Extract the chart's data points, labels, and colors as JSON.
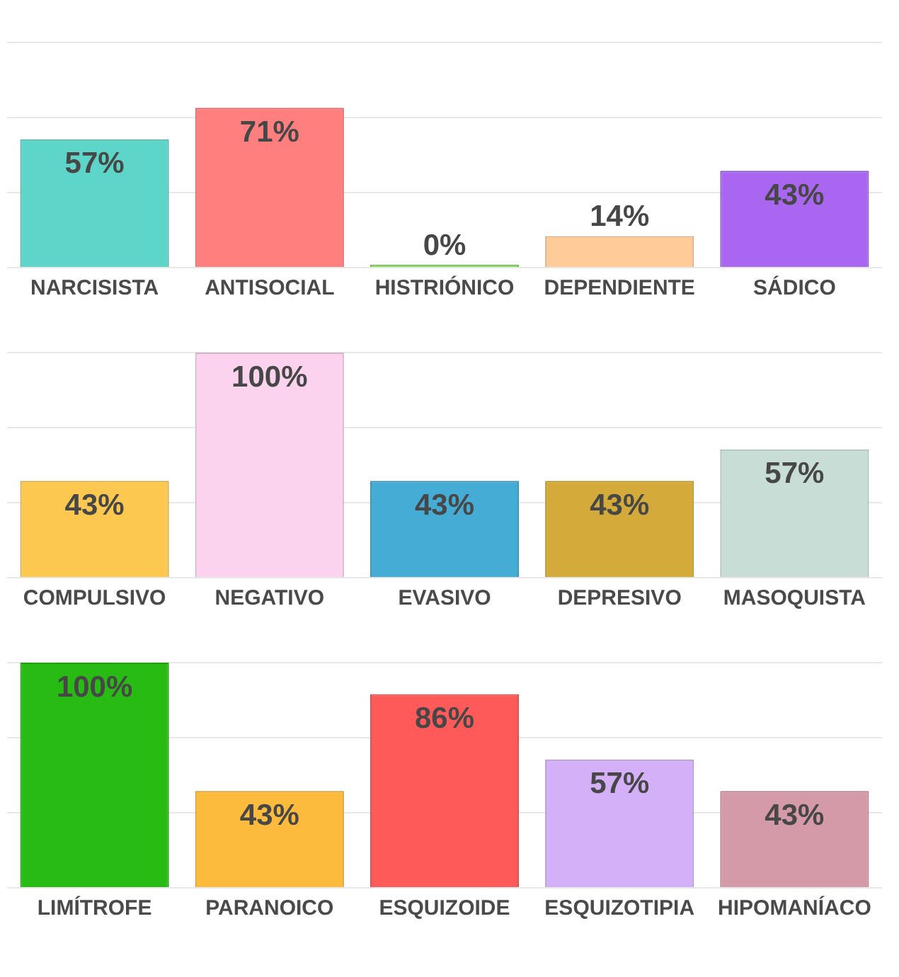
{
  "chart_data": [
    {
      "type": "bar",
      "categories": [
        "NARCISISTA",
        "ANTISOCIAL",
        "HISTRIÓNICO",
        "DEPENDIENTE",
        "SÁDICO"
      ],
      "values": [
        57,
        71,
        0,
        14,
        43
      ],
      "colors": [
        "#5dd5c8",
        "#ff7f7f",
        "#7ed957",
        "#ffcc99",
        "#a966f0"
      ],
      "value_labels": [
        "57%",
        "71%",
        "0%",
        "14%",
        "43%"
      ],
      "ylim": [
        0,
        100
      ],
      "yticks": [
        {
          "value": 0,
          "label": null
        },
        {
          "value": 33.3,
          "label": null
        },
        {
          "value": 66.7,
          "label": null
        },
        {
          "value": 100,
          "label": null
        }
      ],
      "grid": "y",
      "tick_labels": "x"
    },
    {
      "type": "bar",
      "categories": [
        "COMPULSIVO",
        "NEGATIVO",
        "EVASIVO",
        "DEPRESIVO",
        "MASOQUISTA"
      ],
      "values": [
        43,
        100,
        43,
        43,
        57
      ],
      "colors": [
        "#fdc850",
        "#fbd3ef",
        "#45acd6",
        "#d4ab3a",
        "#c8ddd6"
      ],
      "value_labels": [
        "43%",
        "100%",
        "43%",
        "43%",
        "57%"
      ],
      "ylim": [
        0,
        100
      ],
      "yticks": [
        {
          "value": 0,
          "label": null
        },
        {
          "value": 33.3,
          "label": null
        },
        {
          "value": 66.7,
          "label": null
        },
        {
          "value": 100,
          "label": null
        }
      ],
      "grid": "y",
      "tick_labels": "x"
    },
    {
      "type": "bar",
      "categories": [
        "LIMÍTROFE",
        "PARANOICO",
        "ESQUIZOIDE",
        "ESQUIZOTIPIA",
        "HIPOMANÍACO"
      ],
      "values": [
        100,
        43,
        86,
        57,
        43
      ],
      "colors": [
        "#27bb13",
        "#fdbb3e",
        "#ff5a5a",
        "#d4b0f8",
        "#d49aa8"
      ],
      "value_labels": [
        "100%",
        "43%",
        "86%",
        "57%",
        "43%"
      ],
      "ylim": [
        0,
        100
      ],
      "yticks": [
        {
          "value": 0,
          "label": null
        },
        {
          "value": 33.3,
          "label": null
        },
        {
          "value": 66.7,
          "label": null
        },
        {
          "value": 100,
          "label": null
        }
      ],
      "grid": "y",
      "tick_labels": "x"
    }
  ]
}
